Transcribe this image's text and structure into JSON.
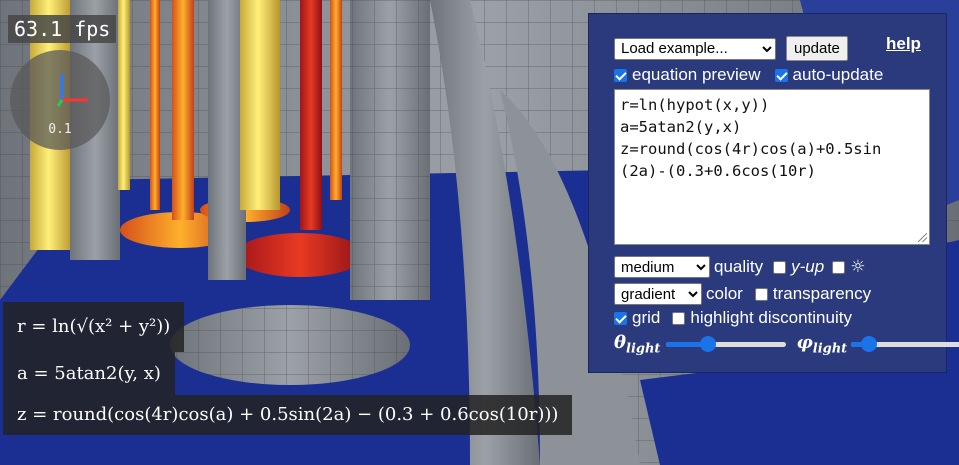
{
  "fps": "63.1 fps",
  "gizmo": {
    "scale": "0.1"
  },
  "panel": {
    "example_select": "Load example...",
    "update_label": "update",
    "help_label": "help",
    "equation_preview_label": "equation preview",
    "auto_update_label": "auto-update",
    "equation_lines": [
      "r=ln(hypot(x,y))",
      "a=5atan2(y,x)",
      "z=round(cos(4r)cos(a)+0.5sin",
      "(2a)-(0.3+0.6cos(10r)"
    ],
    "quality_select": "medium",
    "quality_label": "quality",
    "y_up_label": "y-up",
    "sun_icon": "☼",
    "color_select": "gradient",
    "color_label": "color",
    "transparency_label": "transparency",
    "grid_label": "grid",
    "highlight_label": "highlight discontinuity",
    "theta_label": "θ",
    "phi_label": "φ",
    "light_sub": "light",
    "theta_value": 0.35,
    "phi_value": 0.15
  },
  "math": {
    "line1": "r = ln(√(x² + y²))",
    "line2": "a = 5atan2(y, x)",
    "line3": "z = round(cos(4r)cos(a) + 0.5sin(2a) − (0.3 + 0.6cos(10r)))"
  },
  "colors": {
    "panel_bg": "#2a3a7c",
    "accent": "#1a73e8",
    "floor_blue": "#1b2f92"
  }
}
